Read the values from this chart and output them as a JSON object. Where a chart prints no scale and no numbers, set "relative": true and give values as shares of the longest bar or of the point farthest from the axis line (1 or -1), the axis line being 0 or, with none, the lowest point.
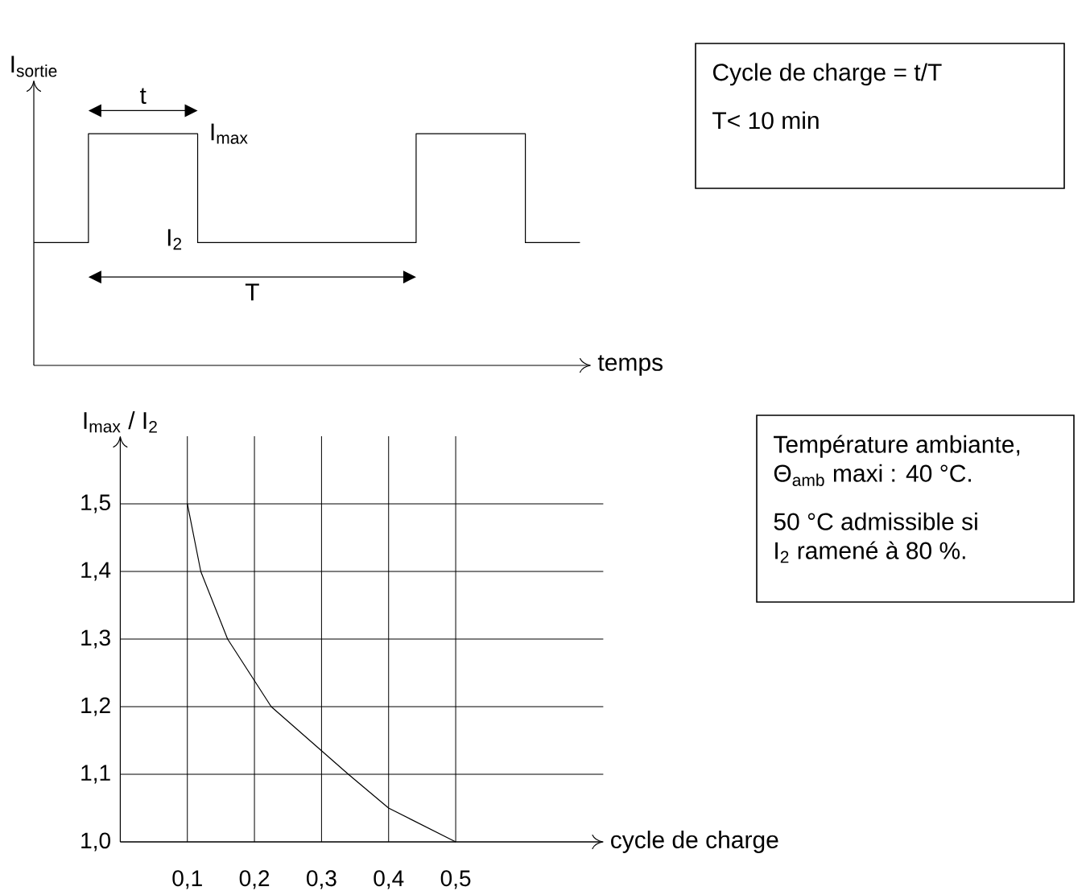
{
  "chart_data": [
    {
      "type": "step",
      "relative": true,
      "ylabel": "I$_{sortie}$",
      "xlabel": "temps",
      "tick_labels": false,
      "categories": [
        null,
        null,
        null,
        null,
        null,
        null,
        null,
        null,
        null,
        null,
        null
      ],
      "series": [
        {
          "color": "#000000",
          "values": [
            0.53,
            1,
            1,
            0.53,
            0.53,
            0.53,
            0.53,
            1,
            1,
            0.53,
            0.53
          ]
        }
      ],
      "annotations": [
        "t",
        "I$_{max}$",
        "I$_{2}$",
        "T",
        "Cycle de charge = t/T",
        "T< 10 min"
      ]
    },
    {
      "type": "line",
      "xlabel": "cycle de charge",
      "ylabel": "I$_{max}$ / I$_{2}$",
      "grid": true,
      "x": [
        0.1,
        0.12,
        0.16,
        0.225,
        0.34,
        0.4,
        0.5
      ],
      "values": [
        1.5,
        1.4,
        1.3,
        1.2,
        1.1,
        1.05,
        1.0
      ],
      "color": "#000000",
      "xlim": [
        0,
        0.72
      ],
      "ylim": [
        1.0,
        1.6
      ],
      "xticks": [
        {
          "value": 0.1,
          "label": "0,1"
        },
        {
          "value": 0.2,
          "label": "0,2"
        },
        {
          "value": 0.3,
          "label": "0,3"
        },
        {
          "value": 0.4,
          "label": "0,4"
        },
        {
          "value": 0.5,
          "label": "0,5"
        }
      ],
      "yticks": [
        {
          "value": 1.0,
          "label": "1,0"
        },
        {
          "value": 1.1,
          "label": "1,1"
        },
        {
          "value": 1.2,
          "label": "1,2"
        },
        {
          "value": 1.3,
          "label": "1,3"
        },
        {
          "value": 1.4,
          "label": "1,4"
        },
        {
          "value": 1.5,
          "label": "1,5"
        }
      ],
      "annotations": [
        "Température ambiante,",
        "Θ$_{amb}$ maxi : 40 °C.",
        "50 °C admissible si",
        "I$_{2}$ ramené à 80 %."
      ]
    }
  ]
}
